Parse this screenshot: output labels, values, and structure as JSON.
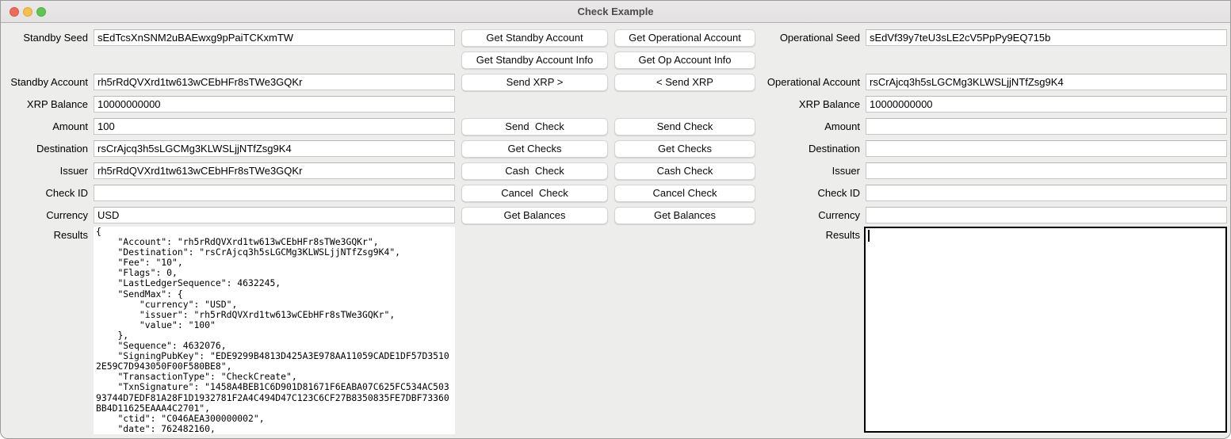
{
  "window": {
    "title": "Check Example",
    "traffic_light_colors": {
      "close": "#ed6a5e",
      "minimize": "#f5bf4f",
      "zoom": "#61c554"
    }
  },
  "standby": {
    "fields": [
      {
        "label": "Standby Seed",
        "value": "sEdTcsXnSNM2uBAEwxg9pPaiTCKxmTW"
      },
      {
        "label": "Standby Account",
        "value": "rh5rRdQVXrd1tw613wCEbHFr8sTWe3GQKr"
      },
      {
        "label": "XRP Balance",
        "value": "10000000000"
      },
      {
        "label": "Amount",
        "value": "100"
      },
      {
        "label": "Destination",
        "value": "rsCrAjcq3h5sLGCMg3KLWSLjjNTfZsg9K4"
      },
      {
        "label": "Issuer",
        "value": "rh5rRdQVXrd1tw613wCEbHFr8sTWe3GQKr"
      },
      {
        "label": "Check ID",
        "value": ""
      },
      {
        "label": "Currency",
        "value": "USD"
      }
    ],
    "results_label": "Results",
    "results_text": "{\n    \"Account\": \"rh5rRdQVXrd1tw613wCEbHFr8sTWe3GQKr\",\n    \"Destination\": \"rsCrAjcq3h5sLGCMg3KLWSLjjNTfZsg9K4\",\n    \"Fee\": \"10\",\n    \"Flags\": 0,\n    \"LastLedgerSequence\": 4632245,\n    \"SendMax\": {\n        \"currency\": \"USD\",\n        \"issuer\": \"rh5rRdQVXrd1tw613wCEbHFr8sTWe3GQKr\",\n        \"value\": \"100\"\n    },\n    \"Sequence\": 4632076,\n    \"SigningPubKey\": \"EDE9299B4813D425A3E978AA11059CADE1DF57D3510\n2E59C7D943050F00F580BE8\",\n    \"TransactionType\": \"CheckCreate\",\n    \"TxnSignature\": \"1458A4BEB1C6D901D81671F6EABA07C625FC534AC503\n93744D7EDF81A28F1D1932781F2A4C494D47C123C6CF27B8350835FE7DBF73360\nBB4D11625EAAA4C2701\",\n    \"ctid\": \"C046AEA300000002\",\n    \"date\": 762482160,"
  },
  "operational": {
    "fields": [
      {
        "label": "Operational Seed",
        "value": "sEdVf39y7teU3sLE2cV5PpPy9EQ715b"
      },
      {
        "label": "Operational Account",
        "value": "rsCrAjcq3h5sLGCMg3KLWSLjjNTfZsg9K4"
      },
      {
        "label": "XRP Balance",
        "value": "10000000000"
      },
      {
        "label": "Amount",
        "value": ""
      },
      {
        "label": "Destination",
        "value": ""
      },
      {
        "label": "Issuer",
        "value": ""
      },
      {
        "label": "Check ID",
        "value": ""
      },
      {
        "label": "Currency",
        "value": ""
      }
    ],
    "results_label": "Results",
    "results_text": ""
  },
  "buttons": {
    "standby": [
      "Get Standby Account",
      "Get Standby Account Info",
      "Send XRP >",
      "Send  Check",
      "Get Checks",
      "Cash  Check",
      "Cancel  Check",
      "Get Balances"
    ],
    "operational": [
      "Get Operational Account",
      "Get Op Account Info",
      "< Send XRP",
      "Send Check",
      "Get Checks",
      "Cash Check",
      "Cancel Check",
      "Get Balances"
    ]
  }
}
